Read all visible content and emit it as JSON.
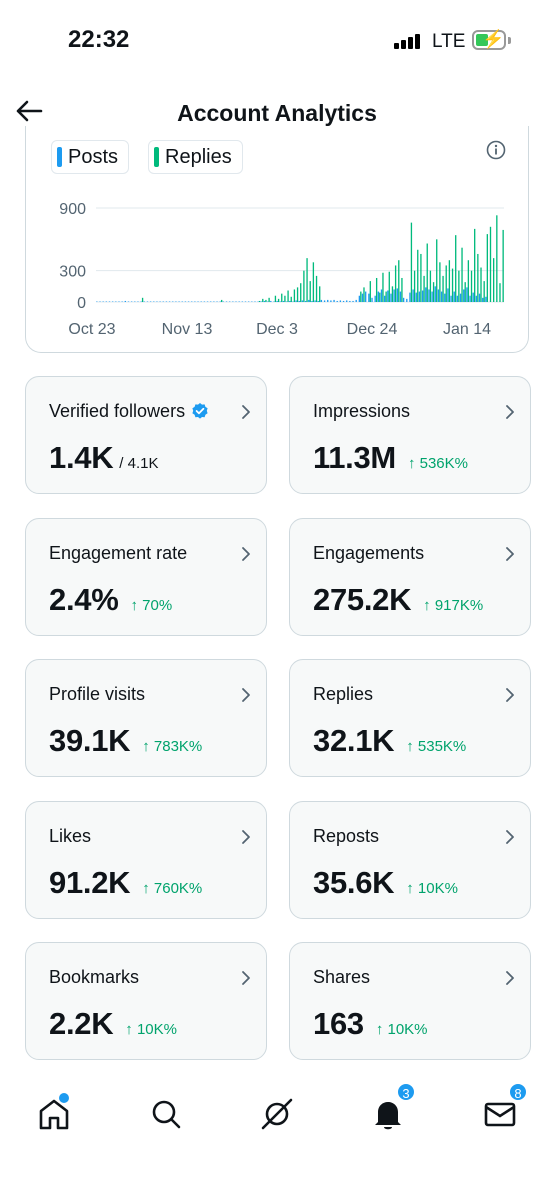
{
  "status": {
    "time": "22:32",
    "network": "LTE"
  },
  "header": {
    "title": "Account Analytics"
  },
  "chart": {
    "legend": [
      {
        "label": "Posts",
        "color": "#1d9bf0"
      },
      {
        "label": "Replies",
        "color": "#00ba7c"
      }
    ],
    "y_ticks": [
      "900",
      "300",
      "0"
    ],
    "x_ticks": [
      "Oct 23",
      "Nov 13",
      "Dec 3",
      "Dec 24",
      "Jan 14"
    ]
  },
  "chart_data": {
    "type": "bar",
    "ylim": [
      0,
      900
    ],
    "x_labels": [
      "Oct 23",
      "Nov 13",
      "Dec 3",
      "Dec 24",
      "Jan 14"
    ],
    "y_tick_values": [
      0,
      300,
      900
    ],
    "grid": true,
    "legend_position": "top-left",
    "series": [
      {
        "name": "Posts",
        "color": "#1d9bf0",
        "values": [
          5,
          5,
          5,
          5,
          5,
          5,
          5,
          5,
          5,
          10,
          5,
          5,
          5,
          5,
          5,
          5,
          5,
          5,
          5,
          5,
          5,
          5,
          5,
          5,
          5,
          5,
          5,
          5,
          5,
          5,
          5,
          5,
          5,
          5,
          5,
          5,
          5,
          5,
          5,
          5,
          5,
          5,
          5,
          5,
          5,
          5,
          5,
          5,
          5,
          5,
          5,
          5,
          5,
          10,
          5,
          10,
          5,
          10,
          5,
          10,
          5,
          10,
          5,
          15,
          10,
          15,
          10,
          20,
          10,
          15,
          10,
          20,
          15,
          20,
          15,
          20,
          10,
          15,
          10,
          15,
          10,
          10,
          20,
          60,
          80,
          100,
          80,
          40,
          60,
          100,
          120,
          60,
          110,
          80,
          120,
          130,
          100,
          40,
          30,
          90,
          120,
          90,
          100,
          110,
          140,
          120,
          100,
          150,
          120,
          100,
          80,
          130,
          60,
          100,
          60,
          80,
          120,
          140,
          60,
          90,
          60,
          80,
          40,
          50
        ]
      },
      {
        "name": "Replies",
        "color": "#00ba7c",
        "values": [
          0,
          0,
          0,
          0,
          0,
          0,
          0,
          0,
          0,
          0,
          0,
          0,
          0,
          0,
          40,
          0,
          0,
          0,
          0,
          0,
          0,
          0,
          0,
          0,
          0,
          0,
          0,
          0,
          0,
          0,
          0,
          0,
          0,
          0,
          0,
          0,
          0,
          0,
          0,
          20,
          0,
          0,
          0,
          0,
          0,
          0,
          0,
          0,
          0,
          0,
          0,
          10,
          30,
          20,
          40,
          0,
          60,
          30,
          80,
          60,
          110,
          50,
          120,
          140,
          180,
          300,
          420,
          200,
          380,
          250,
          150,
          0,
          0,
          0,
          0,
          0,
          0,
          0,
          0,
          0,
          0,
          0,
          0,
          100,
          140,
          0,
          200,
          0,
          230,
          90,
          280,
          100,
          290,
          150,
          350,
          400,
          230,
          0,
          0,
          760,
          300,
          500,
          460,
          250,
          560,
          300,
          190,
          600,
          380,
          250,
          350,
          400,
          320,
          640,
          300,
          520,
          190,
          400,
          300,
          700,
          460,
          330,
          200,
          650,
          720,
          420,
          830,
          180,
          690
        ]
      }
    ]
  },
  "cards": [
    {
      "label": "Verified followers",
      "value": "1.4K",
      "sub": "/ 4.1K",
      "change": "",
      "verified": true
    },
    {
      "label": "Impressions",
      "value": "11.3M",
      "sub": "",
      "change": "↑ 536K%"
    },
    {
      "label": "Engagement rate",
      "value": "2.4%",
      "sub": "",
      "change": "↑ 70%"
    },
    {
      "label": "Engagements",
      "value": "275.2K",
      "sub": "",
      "change": "↑ 917K%"
    },
    {
      "label": "Profile visits",
      "value": "39.1K",
      "sub": "",
      "change": "↑ 783K%"
    },
    {
      "label": "Replies",
      "value": "32.1K",
      "sub": "",
      "change": "↑ 535K%"
    },
    {
      "label": "Likes",
      "value": "91.2K",
      "sub": "",
      "change": "↑ 760K%"
    },
    {
      "label": "Reposts",
      "value": "35.6K",
      "sub": "",
      "change": "↑ 10K%"
    },
    {
      "label": "Bookmarks",
      "value": "2.2K",
      "sub": "",
      "change": "↑ 10K%"
    },
    {
      "label": "Shares",
      "value": "163",
      "sub": "",
      "change": "↑ 10K%"
    }
  ],
  "tabbar": {
    "items": [
      {
        "icon": "home-icon",
        "badge": "",
        "dot": true
      },
      {
        "icon": "search-icon",
        "badge": "",
        "dot": false
      },
      {
        "icon": "grok-icon",
        "badge": "",
        "dot": false
      },
      {
        "icon": "bell-icon",
        "badge": "3",
        "dot": false
      },
      {
        "icon": "mail-icon",
        "badge": "8",
        "dot": false
      }
    ]
  },
  "colors": {
    "accent": "#1d9bf0",
    "positive": "#00a36c",
    "replies": "#00ba7c",
    "card_bg": "#f7f9f9",
    "border": "#cfd9de"
  }
}
